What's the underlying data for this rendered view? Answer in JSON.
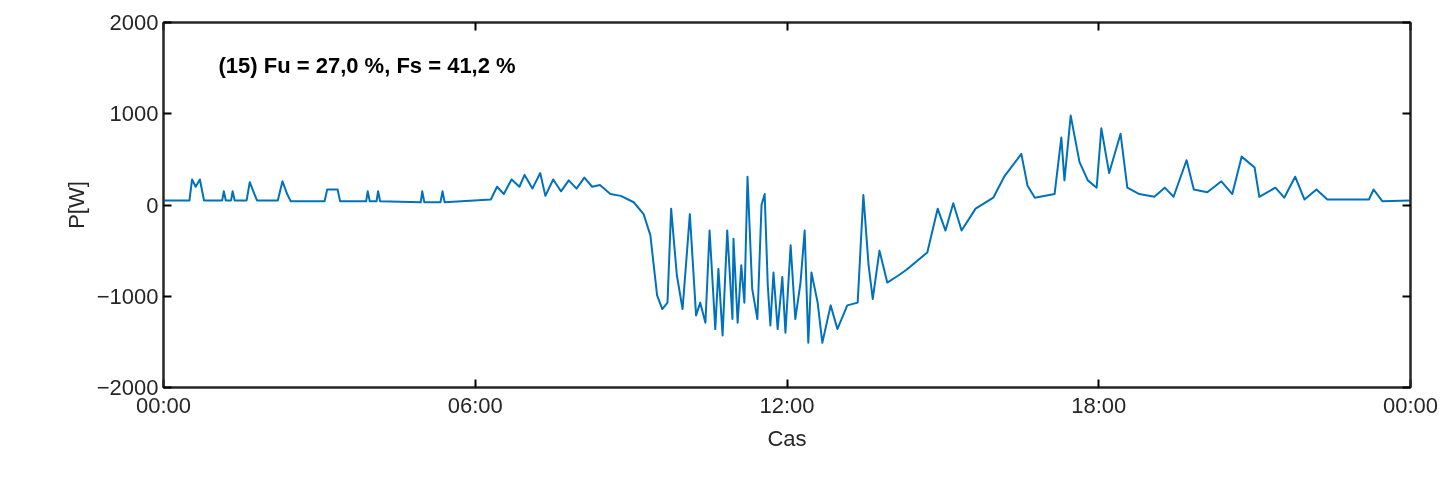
{
  "chart_data": {
    "type": "line",
    "xlabel": "Cas",
    "ylabel": "P[W]",
    "annotations": [
      "(15) Fu = 27,0 %, Fs = 41,2 %"
    ],
    "xlim": [
      0,
      24
    ],
    "ylim": [
      -2000,
      2000
    ],
    "xticks": [
      {
        "value": 0,
        "label": "00:00"
      },
      {
        "value": 6,
        "label": "06:00"
      },
      {
        "value": 12,
        "label": "12:00"
      },
      {
        "value": 18,
        "label": "18:00"
      },
      {
        "value": 24,
        "label": "00:00"
      }
    ],
    "yticks": [
      -2000,
      -1000,
      0,
      1000,
      2000
    ],
    "line_style": "solid",
    "x": [
      0,
      0.5,
      0.55,
      0.62,
      0.7,
      0.78,
      1.13,
      1.16,
      1.2,
      1.3,
      1.33,
      1.37,
      1.6,
      1.66,
      1.75,
      1.8,
      2.2,
      2.29,
      2.38,
      2.45,
      3.1,
      3.15,
      3.35,
      3.4,
      3.9,
      3.93,
      3.97,
      4.1,
      4.13,
      4.17,
      4.95,
      4.98,
      5.02,
      5.33,
      5.37,
      5.41,
      6.3,
      6.42,
      6.55,
      6.7,
      6.85,
      6.95,
      7.1,
      7.25,
      7.35,
      7.5,
      7.65,
      7.8,
      7.95,
      8.1,
      8.25,
      8.4,
      8.6,
      8.8,
      9.05,
      9.24,
      9.37,
      9.5,
      9.6,
      9.7,
      9.77,
      9.88,
      9.99,
      10.05,
      10.13,
      10.25,
      10.33,
      10.43,
      10.51,
      10.62,
      10.68,
      10.76,
      10.85,
      10.95,
      10.97,
      11.05,
      11.12,
      11.18,
      11.24,
      11.33,
      11.43,
      11.51,
      11.57,
      11.63,
      11.68,
      11.74,
      11.82,
      11.91,
      11.97,
      12.07,
      12.16,
      12.26,
      12.34,
      12.41,
      12.47,
      12.59,
      12.68,
      12.84,
      12.97,
      13.16,
      13.36,
      13.47,
      13.57,
      13.65,
      13.78,
      13.93,
      14.15,
      14.3,
      14.7,
      14.9,
      15.05,
      15.2,
      15.36,
      15.63,
      15.97,
      16.18,
      16.51,
      16.63,
      16.77,
      17.15,
      17.28,
      17.34,
      17.46,
      17.63,
      17.79,
      17.96,
      18.05,
      18.2,
      18.42,
      18.55,
      18.78,
      19.07,
      19.27,
      19.44,
      19.69,
      19.83,
      20.09,
      20.36,
      20.57,
      20.75,
      21.0,
      21.09,
      21.4,
      21.57,
      21.78,
      21.96,
      22.19,
      22.4,
      23.2,
      23.29,
      23.46,
      24
    ],
    "series": [
      {
        "color": "#0072bd",
        "values": [
          50,
          50,
          280,
          200,
          280,
          50,
          50,
          150,
          50,
          50,
          150,
          50,
          50,
          250,
          120,
          50,
          50,
          260,
          120,
          40,
          40,
          170,
          170,
          40,
          40,
          150,
          40,
          40,
          150,
          40,
          30,
          150,
          30,
          30,
          150,
          30,
          60,
          200,
          120,
          280,
          200,
          330,
          180,
          350,
          100,
          280,
          150,
          270,
          180,
          300,
          200,
          220,
          120,
          100,
          30,
          -100,
          -330,
          -990,
          -1140,
          -1070,
          -40,
          -770,
          -1140,
          -700,
          -100,
          -1210,
          -1070,
          -1290,
          -280,
          -1360,
          -700,
          -1430,
          -280,
          -1250,
          -370,
          -1290,
          -660,
          -1070,
          310,
          -920,
          -1250,
          0,
          120,
          -880,
          -1320,
          -740,
          -1360,
          -790,
          -1400,
          -440,
          -1250,
          -850,
          -280,
          -1510,
          -740,
          -1070,
          -1510,
          -1100,
          -1360,
          -1100,
          -1070,
          110,
          -660,
          -1030,
          -500,
          -850,
          -770,
          -710,
          -520,
          -40,
          -280,
          20,
          -280,
          -40,
          80,
          310,
          560,
          210,
          80,
          120,
          740,
          270,
          980,
          470,
          270,
          190,
          840,
          350,
          780,
          190,
          120,
          90,
          190,
          90,
          490,
          170,
          140,
          260,
          120,
          530,
          410,
          90,
          190,
          80,
          310,
          60,
          170,
          60,
          60,
          170,
          40,
          50
        ]
      }
    ]
  }
}
